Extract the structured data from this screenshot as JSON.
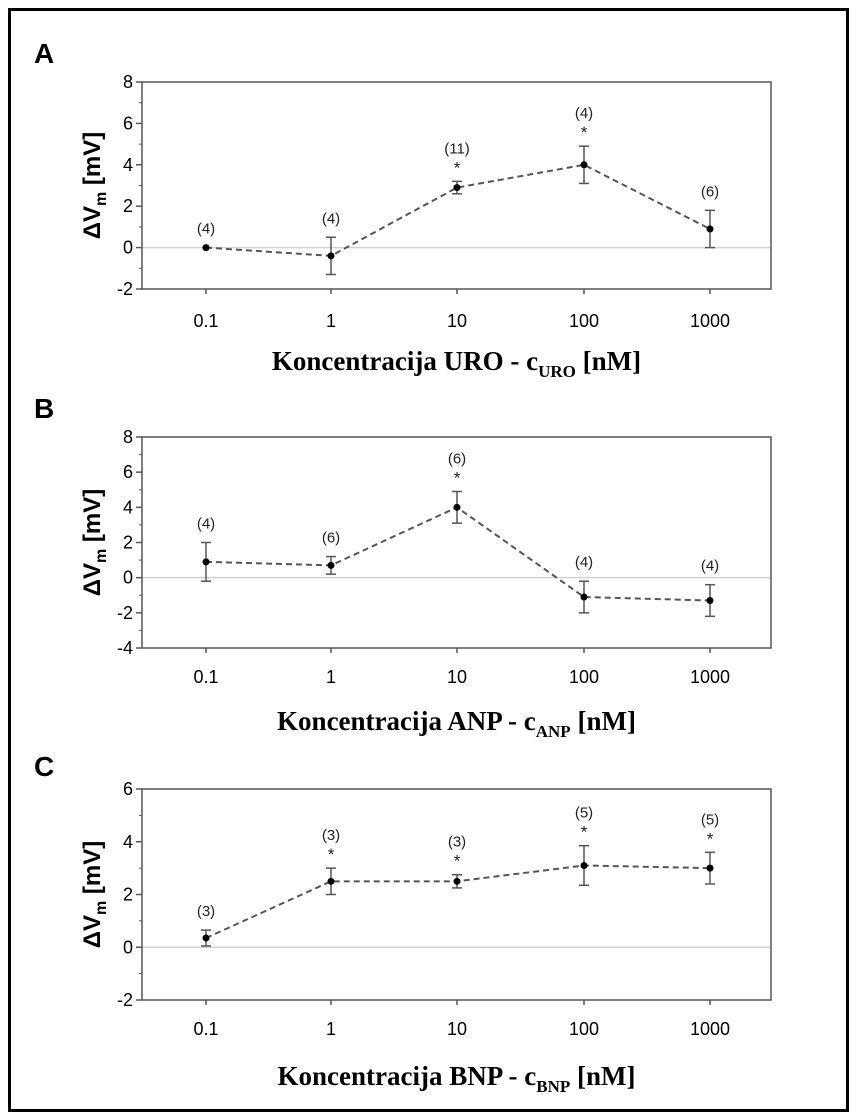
{
  "chart_data": [
    {
      "panel": "A",
      "type": "line",
      "ylabel": "ΔV",
      "ylabel_sub": "m",
      "ylabel_unit": "[mV]",
      "xlabel_main": "Koncentracija URO - c",
      "xlabel_sub": "URO",
      "xlabel_unit": "[nM]",
      "xscale": "log",
      "categories": [
        "0.1",
        "1",
        "10",
        "100",
        "1000"
      ],
      "x": [
        0.1,
        1,
        10,
        100,
        1000
      ],
      "ylim": [
        -2,
        8
      ],
      "yticks": [
        "-2",
        "0",
        "2",
        "4",
        "6",
        "8"
      ],
      "series": [
        {
          "values": [
            0.0,
            -0.4,
            2.9,
            4.0,
            0.9
          ],
          "errors": [
            0.0,
            0.9,
            0.3,
            0.9,
            0.9
          ],
          "n_labels": [
            "(4)",
            "(4)",
            "(11)",
            "(4)",
            "(6)"
          ],
          "significant": [
            false,
            false,
            true,
            true,
            false
          ]
        }
      ],
      "zero_line": true,
      "line_style": "dashed"
    },
    {
      "panel": "B",
      "type": "line",
      "ylabel": "ΔV",
      "ylabel_sub": "m",
      "ylabel_unit": "[mV]",
      "xlabel_main": "Koncentracija ANP - c",
      "xlabel_sub": "ANP",
      "xlabel_unit": "[nM]",
      "xscale": "log",
      "categories": [
        "0.1",
        "1",
        "10",
        "100",
        "1000"
      ],
      "x": [
        0.1,
        1,
        10,
        100,
        1000
      ],
      "ylim": [
        -4,
        8
      ],
      "yticks": [
        "-4",
        "-2",
        "0",
        "2",
        "4",
        "6",
        "8"
      ],
      "series": [
        {
          "values": [
            0.9,
            0.7,
            4.0,
            -1.1,
            -1.3
          ],
          "errors": [
            1.1,
            0.5,
            0.9,
            0.9,
            0.9
          ],
          "n_labels": [
            "(4)",
            "(6)",
            "(6)",
            "(4)",
            "(4)"
          ],
          "significant": [
            false,
            false,
            true,
            false,
            false
          ]
        }
      ],
      "zero_line": true,
      "line_style": "dashed"
    },
    {
      "panel": "C",
      "type": "line",
      "ylabel": "ΔV",
      "ylabel_sub": "m",
      "ylabel_unit": "[mV]",
      "xlabel_main": "Koncentracija BNP - c",
      "xlabel_sub": "BNP",
      "xlabel_unit": "[nM]",
      "xscale": "log",
      "categories": [
        "0.1",
        "1",
        "10",
        "100",
        "1000"
      ],
      "x": [
        0.1,
        1,
        10,
        100,
        1000
      ],
      "ylim": [
        -2,
        6
      ],
      "yticks": [
        "-2",
        "0",
        "2",
        "4",
        "6"
      ],
      "series": [
        {
          "values": [
            0.35,
            2.5,
            2.5,
            3.1,
            3.0
          ],
          "errors": [
            0.3,
            0.5,
            0.25,
            0.75,
            0.6
          ],
          "n_labels": [
            "(3)",
            "(3)",
            "(3)",
            "(5)",
            "(5)"
          ],
          "significant": [
            false,
            true,
            true,
            true,
            true
          ]
        }
      ],
      "zero_line": true,
      "line_style": "dashed"
    }
  ],
  "colors": {
    "line": "#555555",
    "marker": "#000000",
    "axis": "#555555",
    "zero_line": "#d0d0d0",
    "frame": "#000000"
  },
  "star_symbol": "*"
}
